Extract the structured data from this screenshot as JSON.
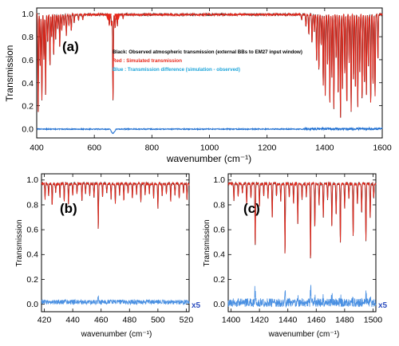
{
  "colors": {
    "observed": "#111111",
    "simulated": "#e8281c",
    "difference": "#1f6fd1",
    "difference_light": "#4a90e2",
    "x5_label": "#2e4fbf",
    "legend_black": "#000000",
    "legend_red": "#e8281c",
    "legend_blue": "#1aa3d9"
  },
  "chart_data": [
    {
      "panel": "(a)",
      "type": "line",
      "xlabel": "wavenumber (cm⁻¹)",
      "ylabel": "Transmission",
      "xlim": [
        400,
        1600
      ],
      "ylim": [
        -0.08,
        1.05
      ],
      "xticks": [
        "400",
        "600",
        "800",
        "1000",
        "1200",
        "1400",
        "1600"
      ],
      "yticks": [
        "0.0",
        "0.2",
        "0.4",
        "0.6",
        "0.8",
        "1.0"
      ],
      "legend": [
        {
          "text": "Black: Observed atmospheric transmission (external BBs to EM27 input window)",
          "color_key": "legend_black"
        },
        {
          "text": "Red    : Simulated transmission",
          "color_key": "legend_red"
        },
        {
          "text": "Blue  : Transmission difference (simulation - observed)",
          "color_key": "legend_blue"
        }
      ],
      "legend_position": "upper-middle",
      "series": [
        {
          "role": "transmission",
          "baseline": 1.0,
          "absorption_lines": [
            [
              405,
              0.15
            ],
            [
              412,
              0.55
            ],
            [
              418,
              0.25
            ],
            [
              425,
              0.6
            ],
            [
              431,
              0.3
            ],
            [
              438,
              0.75
            ],
            [
              446,
              0.55
            ],
            [
              452,
              0.8
            ],
            [
              459,
              0.65
            ],
            [
              466,
              0.78
            ],
            [
              473,
              0.88
            ],
            [
              480,
              0.72
            ],
            [
              487,
              0.86
            ],
            [
              495,
              0.9
            ],
            [
              503,
              0.82
            ],
            [
              512,
              0.9
            ],
            [
              520,
              0.86
            ],
            [
              530,
              0.93
            ],
            [
              545,
              0.95
            ],
            [
              560,
              0.96
            ],
            [
              652,
              0.9
            ],
            [
              660,
              0.9
            ],
            [
              665,
              0.25
            ],
            [
              672,
              0.88
            ],
            [
              680,
              0.9
            ],
            [
              700,
              0.97
            ],
            [
              1320,
              0.95
            ],
            [
              1335,
              0.9
            ],
            [
              1345,
              0.82
            ],
            [
              1356,
              0.75
            ],
            [
              1364,
              0.85
            ],
            [
              1372,
              0.6
            ],
            [
              1380,
              0.5
            ],
            [
              1388,
              0.72
            ],
            [
              1395,
              0.38
            ],
            [
              1402,
              0.3
            ],
            [
              1410,
              0.55
            ],
            [
              1418,
              0.22
            ],
            [
              1425,
              0.45
            ],
            [
              1432,
              0.18
            ],
            [
              1440,
              0.62
            ],
            [
              1447,
              0.28
            ],
            [
              1455,
              0.1
            ],
            [
              1462,
              0.35
            ],
            [
              1470,
              0.48
            ],
            [
              1477,
              0.2
            ],
            [
              1485,
              0.58
            ],
            [
              1492,
              0.15
            ],
            [
              1500,
              0.42
            ],
            [
              1507,
              0.33
            ],
            [
              1515,
              0.2
            ],
            [
              1522,
              0.5
            ],
            [
              1530,
              0.25
            ],
            [
              1538,
              0.4
            ],
            [
              1545,
              0.3
            ],
            [
              1552,
              0.55
            ],
            [
              1560,
              0.22
            ],
            [
              1568,
              0.38
            ],
            [
              1575,
              0.28
            ],
            [
              1585,
              0.6
            ]
          ]
        },
        {
          "role": "difference",
          "baseline": -0.005,
          "feature": [
            655,
            675,
            -0.035
          ]
        }
      ]
    },
    {
      "panel": "(b)",
      "type": "line",
      "xlabel": "wavenumber (cm⁻¹)",
      "ylabel": "Transmission",
      "xlim": [
        418,
        522
      ],
      "ylim": [
        -0.06,
        1.05
      ],
      "xticks": [
        "420",
        "440",
        "460",
        "480",
        "500",
        "520"
      ],
      "yticks": [
        "0.0",
        "0.2",
        "0.4",
        "0.6",
        "0.8",
        "1.0"
      ],
      "difference_scale_label": "x5",
      "series": [
        {
          "role": "transmission",
          "baseline": 0.98,
          "absorption_lines": [
            [
              420.5,
              0.86
            ],
            [
              423,
              0.88
            ],
            [
              425.5,
              0.8
            ],
            [
              428,
              0.9
            ],
            [
              431,
              0.87
            ],
            [
              434,
              0.84
            ],
            [
              437,
              0.82
            ],
            [
              440,
              0.88
            ],
            [
              443,
              0.9
            ],
            [
              446.5,
              0.84
            ],
            [
              449,
              0.9
            ],
            [
              452,
              0.88
            ],
            [
              455,
              0.86
            ],
            [
              458,
              0.62
            ],
            [
              461,
              0.88
            ],
            [
              464,
              0.9
            ],
            [
              467,
              0.86
            ],
            [
              470,
              0.82
            ],
            [
              473,
              0.88
            ],
            [
              476,
              0.85
            ],
            [
              479,
              0.9
            ],
            [
              482,
              0.86
            ],
            [
              485,
              0.9
            ],
            [
              488,
              0.84
            ],
            [
              491,
              0.88
            ],
            [
              494,
              0.9
            ],
            [
              497,
              0.86
            ],
            [
              500,
              0.78
            ],
            [
              503,
              0.88
            ],
            [
              506,
              0.9
            ],
            [
              509,
              0.84
            ],
            [
              512,
              0.88
            ],
            [
              515,
              0.86
            ],
            [
              518,
              0.9
            ],
            [
              520.5,
              0.85
            ]
          ]
        },
        {
          "role": "difference",
          "baseline": 0.01,
          "noise_amplitude": 0.04
        }
      ]
    },
    {
      "panel": "(c)",
      "type": "line",
      "xlabel": "wavenumber (cm⁻¹)",
      "ylabel": "Transmission",
      "xlim": [
        1398,
        1502
      ],
      "ylim": [
        -0.06,
        1.05
      ],
      "xticks": [
        "1400",
        "1420",
        "1440",
        "1460",
        "1480",
        "1500"
      ],
      "yticks": [
        "0.0",
        "0.2",
        "0.4",
        "0.6",
        "0.8",
        "1.0"
      ],
      "difference_scale_label": "x5",
      "series": [
        {
          "role": "transmission",
          "baseline": 0.98,
          "absorption_lines": [
            [
              1402,
              0.85
            ],
            [
              1405,
              0.88
            ],
            [
              1408,
              0.9
            ],
            [
              1411,
              0.82
            ],
            [
              1414,
              0.86
            ],
            [
              1417,
              0.48
            ],
            [
              1420,
              0.8
            ],
            [
              1423,
              0.88
            ],
            [
              1426,
              0.86
            ],
            [
              1429,
              0.7
            ],
            [
              1432,
              0.88
            ],
            [
              1435,
              0.84
            ],
            [
              1438,
              0.42
            ],
            [
              1441,
              0.86
            ],
            [
              1444,
              0.82
            ],
            [
              1447,
              0.66
            ],
            [
              1450,
              0.85
            ],
            [
              1453,
              0.88
            ],
            [
              1456,
              0.35
            ],
            [
              1459,
              0.62
            ],
            [
              1462,
              0.8
            ],
            [
              1465,
              0.7
            ],
            [
              1468,
              0.85
            ],
            [
              1471,
              0.64
            ],
            [
              1474,
              0.72
            ],
            [
              1477,
              0.5
            ],
            [
              1480,
              0.78
            ],
            [
              1483,
              0.86
            ],
            [
              1486,
              0.56
            ],
            [
              1489,
              0.82
            ],
            [
              1492,
              0.75
            ],
            [
              1495,
              0.52
            ],
            [
              1498,
              0.7
            ],
            [
              1500.5,
              0.86
            ]
          ]
        },
        {
          "role": "difference",
          "baseline": 0.0,
          "noise_amplitude": 0.07
        }
      ]
    }
  ]
}
